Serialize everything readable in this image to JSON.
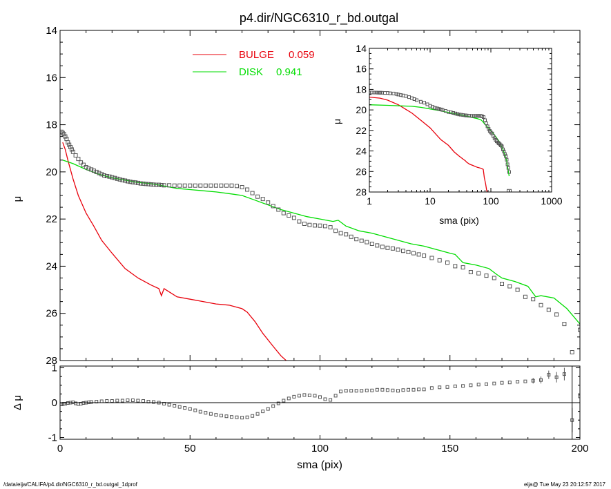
{
  "colors": {
    "bulge": "#e8000b",
    "disk": "#00dd00",
    "data": "#555555",
    "axis": "#000000"
  },
  "footer": {
    "path": "/data/eija/CALIFA/p4.dir/NGC6310_r_bd.outgal_1dprof",
    "stamp": "eija@  Tue May 23 20:12:57 2017"
  },
  "chart_data": [
    {
      "id": "main",
      "type": "line",
      "title": "p4.dir/NGC6310_r_bd.outgal",
      "xlabel": "",
      "ylabel": "μ",
      "xlim": [
        0,
        200
      ],
      "ylim": [
        28,
        14
      ],
      "xticks": [
        0,
        50,
        100,
        150,
        200
      ],
      "yticks": [
        14,
        16,
        18,
        20,
        22,
        24,
        26,
        28
      ],
      "legend": {
        "placement": "top-center",
        "entries": [
          {
            "label": "BULGE",
            "value": "0.059",
            "color": "#e8000b"
          },
          {
            "label": "DISK",
            "value": "0.941",
            "color": "#00dd00"
          }
        ]
      },
      "series": [
        {
          "name": "BULGE",
          "kind": "line",
          "color": "#e8000b",
          "x": [
            1,
            2,
            3,
            5,
            7,
            10,
            13,
            16,
            20,
            25,
            30,
            35,
            38,
            39,
            40,
            45,
            50,
            55,
            60,
            65,
            70,
            72,
            75,
            78,
            82,
            85,
            88
          ],
          "y": [
            18.75,
            19.05,
            19.5,
            20.3,
            21.0,
            21.75,
            22.3,
            22.9,
            23.45,
            24.1,
            24.5,
            24.8,
            24.95,
            25.25,
            24.95,
            25.3,
            25.4,
            25.5,
            25.6,
            25.65,
            25.8,
            25.95,
            26.35,
            26.85,
            27.4,
            27.8,
            28.1
          ]
        },
        {
          "name": "DISK",
          "kind": "line",
          "color": "#00dd00",
          "x": [
            1,
            5,
            10,
            15,
            20,
            25,
            30,
            35,
            40,
            45,
            50,
            55,
            60,
            65,
            70,
            75,
            80,
            85,
            90,
            95,
            100,
            105,
            107,
            110,
            115,
            120,
            125,
            130,
            135,
            140,
            145,
            150,
            152,
            155,
            160,
            165,
            168,
            170,
            175,
            180,
            183,
            185,
            190,
            195,
            200
          ],
          "y": [
            19.5,
            19.65,
            19.9,
            20.1,
            20.25,
            20.35,
            20.45,
            20.5,
            20.6,
            20.7,
            20.75,
            20.8,
            20.85,
            20.92,
            21.0,
            21.2,
            21.4,
            21.6,
            21.75,
            21.9,
            22.0,
            22.1,
            22.05,
            22.3,
            22.5,
            22.6,
            22.75,
            22.9,
            23.05,
            23.15,
            23.3,
            23.45,
            23.5,
            23.85,
            23.95,
            24.1,
            24.35,
            24.5,
            24.65,
            24.85,
            25.3,
            25.25,
            25.35,
            25.8,
            26.45
          ]
        },
        {
          "name": "",
          "kind": "points",
          "color": "#555555",
          "x": [
            0.5,
            1,
            1.5,
            2,
            2.5,
            3,
            3.5,
            4,
            4.5,
            5,
            6,
            7,
            8,
            9,
            10,
            11,
            12,
            13,
            14,
            15,
            16,
            17,
            18,
            19,
            20,
            21,
            22,
            23,
            24,
            25,
            26,
            27,
            28,
            29,
            30,
            31,
            32,
            33,
            34,
            35,
            36,
            37,
            38,
            39,
            40,
            42,
            44,
            46,
            48,
            50,
            52,
            54,
            56,
            58,
            60,
            62,
            64,
            66,
            68,
            70,
            72,
            74,
            76,
            78,
            80,
            82,
            84,
            86,
            88,
            90,
            92,
            94,
            96,
            98,
            100,
            102,
            104,
            106,
            108,
            110,
            112,
            114,
            116,
            118,
            120,
            122,
            124,
            126,
            128,
            130,
            132,
            134,
            136,
            138,
            140,
            143,
            146,
            149,
            152,
            155,
            158,
            161,
            164,
            167,
            170,
            173,
            176,
            179,
            182,
            185,
            188,
            191,
            194,
            197,
            200
          ],
          "y": [
            18.3,
            18.35,
            18.4,
            18.5,
            18.6,
            18.75,
            18.85,
            18.95,
            19.05,
            19.15,
            19.3,
            19.45,
            19.6,
            19.7,
            19.8,
            19.85,
            19.9,
            19.95,
            20.0,
            20.05,
            20.1,
            20.15,
            20.18,
            20.2,
            20.23,
            20.26,
            20.29,
            20.32,
            20.35,
            20.37,
            20.4,
            20.42,
            20.44,
            20.45,
            20.47,
            20.49,
            20.5,
            20.51,
            20.52,
            20.53,
            20.54,
            20.55,
            20.55,
            20.56,
            20.57,
            20.57,
            20.58,
            20.58,
            20.58,
            20.58,
            20.58,
            20.58,
            20.58,
            20.58,
            20.58,
            20.58,
            20.58,
            20.58,
            20.6,
            20.65,
            20.75,
            20.9,
            21.05,
            21.15,
            21.3,
            21.45,
            21.6,
            21.75,
            21.85,
            21.95,
            22.1,
            22.2,
            22.25,
            22.27,
            22.28,
            22.3,
            22.35,
            22.5,
            22.6,
            22.65,
            22.75,
            22.85,
            22.92,
            22.98,
            23.05,
            23.12,
            23.18,
            23.22,
            23.25,
            23.3,
            23.35,
            23.4,
            23.45,
            23.5,
            23.55,
            23.65,
            23.75,
            23.85,
            24.0,
            24.05,
            24.25,
            24.3,
            24.4,
            24.5,
            24.75,
            24.85,
            25.0,
            25.3,
            25.4,
            25.65,
            25.85,
            26.05,
            26.45,
            27.65,
            26.7
          ]
        }
      ]
    },
    {
      "id": "residual",
      "type": "scatter",
      "xlabel": "sma (pix)",
      "ylabel": "Δ μ",
      "xlim": [
        0,
        200
      ],
      "ylim": [
        -1.05,
        1.05
      ],
      "xticks": [
        0,
        50,
        100,
        150,
        200
      ],
      "yticks": [
        -1,
        0,
        1
      ],
      "zero_line": 0,
      "vline_x": 197,
      "series": [
        {
          "name": "",
          "kind": "points",
          "color": "#555555",
          "x": [
            0.5,
            1,
            1.5,
            2,
            3,
            4,
            5,
            6,
            7,
            8,
            9,
            10,
            11,
            12,
            14,
            16,
            18,
            20,
            22,
            24,
            26,
            28,
            30,
            32,
            34,
            36,
            38,
            40,
            42,
            44,
            46,
            48,
            50,
            52,
            54,
            56,
            58,
            60,
            62,
            64,
            66,
            68,
            70,
            72,
            74,
            76,
            78,
            80,
            82,
            84,
            86,
            88,
            90,
            92,
            94,
            96,
            98,
            100,
            102,
            104,
            106,
            108,
            110,
            112,
            114,
            116,
            118,
            120,
            122,
            124,
            126,
            128,
            130,
            132,
            134,
            136,
            138,
            140,
            143,
            146,
            149,
            152,
            155,
            158,
            161,
            164,
            167,
            170,
            173,
            176,
            179,
            182,
            185,
            188,
            191,
            194,
            197,
            200
          ],
          "y": [
            -0.05,
            -0.04,
            -0.03,
            -0.03,
            -0.01,
            0.0,
            0.01,
            -0.02,
            -0.04,
            -0.03,
            -0.01,
            0.0,
            0.01,
            0.02,
            0.03,
            0.04,
            0.05,
            0.05,
            0.06,
            0.06,
            0.07,
            0.07,
            0.06,
            0.05,
            0.03,
            0.02,
            0.0,
            -0.03,
            -0.06,
            -0.09,
            -0.12,
            -0.15,
            -0.18,
            -0.22,
            -0.26,
            -0.29,
            -0.32,
            -0.35,
            -0.37,
            -0.39,
            -0.41,
            -0.42,
            -0.43,
            -0.42,
            -0.38,
            -0.32,
            -0.25,
            -0.18,
            -0.1,
            -0.02,
            0.06,
            0.12,
            0.17,
            0.2,
            0.22,
            0.21,
            0.2,
            0.16,
            0.1,
            0.08,
            0.2,
            0.32,
            0.34,
            0.34,
            0.34,
            0.34,
            0.35,
            0.35,
            0.37,
            0.37,
            0.36,
            0.35,
            0.34,
            0.36,
            0.37,
            0.37,
            0.38,
            0.38,
            0.42,
            0.44,
            0.45,
            0.47,
            0.48,
            0.5,
            0.52,
            0.53,
            0.55,
            0.57,
            0.58,
            0.6,
            0.61,
            0.63,
            0.65,
            0.8,
            0.73,
            0.82,
            -0.5,
            0.18
          ]
        },
        {
          "name": "",
          "kind": "errorbars",
          "color": "#555555",
          "x": [
            182,
            185,
            188,
            191,
            194,
            197
          ],
          "y": [
            0.63,
            0.65,
            0.8,
            0.73,
            0.82,
            -0.5
          ],
          "err": [
            0.08,
            0.1,
            0.12,
            0.15,
            0.18,
            0.35
          ]
        }
      ]
    },
    {
      "id": "inset",
      "type": "line",
      "xlabel": "sma (pix)",
      "ylabel": "μ",
      "xscale": "log",
      "xlim": [
        1,
        1000
      ],
      "ylim": [
        28,
        14
      ],
      "xticks": [
        1,
        10,
        100,
        1000
      ],
      "xticklabels": [
        "1",
        "10",
        "100",
        "1000"
      ],
      "yticks": [
        14,
        16,
        18,
        20,
        22,
        24,
        26,
        28
      ],
      "series": [
        {
          "name": "BULGE",
          "kind": "line",
          "color": "#e8000b",
          "x": [
            1,
            1.5,
            2,
            3,
            4,
            5,
            7,
            10,
            15,
            20,
            25,
            30,
            35,
            38,
            40,
            45,
            50,
            60,
            70,
            75,
            78,
            82,
            85,
            88
          ],
          "y": [
            18.75,
            18.85,
            19.05,
            19.5,
            19.95,
            20.3,
            21.0,
            21.75,
            22.9,
            23.45,
            24.1,
            24.5,
            24.8,
            24.95,
            25.1,
            25.3,
            25.4,
            25.6,
            25.7,
            25.8,
            26.6,
            27.2,
            27.8,
            28.1
          ]
        },
        {
          "name": "DISK",
          "kind": "line",
          "color": "#00dd00",
          "x": [
            1,
            2,
            3,
            5,
            7,
            10,
            15,
            20,
            30,
            40,
            50,
            60,
            70,
            80,
            90,
            100,
            120,
            140,
            160,
            180,
            200
          ],
          "y": [
            19.5,
            19.55,
            19.6,
            19.65,
            19.75,
            19.9,
            20.1,
            20.25,
            20.45,
            20.6,
            20.75,
            20.85,
            21.0,
            21.4,
            21.75,
            22.0,
            22.6,
            23.15,
            23.95,
            24.85,
            26.45
          ]
        },
        {
          "name": "",
          "kind": "points",
          "color": "#555555",
          "x": [
            1,
            1.1,
            1.2,
            1.3,
            1.4,
            1.5,
            1.6,
            1.8,
            2,
            2.2,
            2.5,
            2.8,
            3,
            3.3,
            3.6,
            4,
            4.5,
            5,
            5.5,
            6,
            7,
            8,
            9,
            10,
            11,
            12,
            13,
            14,
            15,
            16,
            18,
            20,
            22,
            24,
            26,
            28,
            30,
            32,
            35,
            38,
            40,
            44,
            48,
            52,
            56,
            60,
            64,
            68,
            72,
            76,
            80,
            84,
            88,
            92,
            96,
            100,
            105,
            110,
            115,
            120,
            125,
            130,
            135,
            140,
            146,
            152,
            158,
            164,
            170,
            176,
            182,
            188,
            194,
            200
          ],
          "y": [
            18.3,
            18.3,
            18.31,
            18.31,
            18.32,
            18.32,
            18.33,
            18.35,
            18.35,
            18.38,
            18.4,
            18.45,
            18.5,
            18.55,
            18.6,
            18.65,
            18.75,
            18.85,
            18.95,
            19.05,
            19.2,
            19.3,
            19.45,
            19.6,
            19.7,
            19.8,
            19.85,
            19.9,
            19.95,
            20.0,
            20.1,
            20.2,
            20.23,
            20.29,
            20.35,
            20.4,
            20.44,
            20.47,
            20.5,
            20.53,
            20.55,
            20.57,
            20.58,
            20.58,
            20.58,
            20.58,
            20.58,
            20.58,
            20.62,
            20.7,
            21.0,
            21.3,
            21.6,
            21.85,
            22.05,
            22.2,
            22.3,
            22.55,
            22.75,
            22.92,
            23.05,
            23.18,
            23.25,
            23.35,
            23.45,
            23.55,
            23.85,
            24.05,
            24.3,
            24.5,
            24.85,
            25.3,
            25.65,
            26.05
          ]
        },
        {
          "name": "",
          "kind": "open-square",
          "color": "#555555",
          "x": [
            200
          ],
          "y": [
            27.95
          ]
        }
      ]
    }
  ]
}
